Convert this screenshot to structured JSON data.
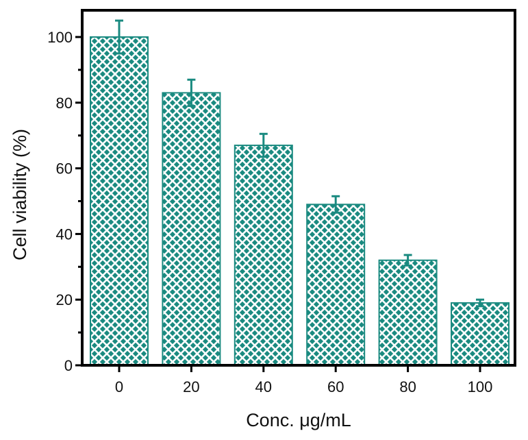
{
  "chart_data": {
    "type": "bar",
    "title": "",
    "xlabel": "Conc. μg/mL",
    "ylabel": "Cell viability (%)",
    "categories": [
      "0",
      "20",
      "40",
      "60",
      "80",
      "100"
    ],
    "values": [
      100,
      83,
      67,
      49,
      32,
      19
    ],
    "error": [
      5,
      4,
      3.5,
      2.5,
      1.6,
      1.0
    ],
    "ylim": [
      0,
      105
    ],
    "yticks": [
      "0",
      "20",
      "40",
      "60",
      "80",
      "100"
    ],
    "ytick_values": [
      0,
      20,
      40,
      60,
      80,
      100
    ],
    "grid": false,
    "bar_color": "#1a8a80",
    "bar_pattern": "cross-hatch",
    "error_bar_color": "#1a8a80"
  }
}
